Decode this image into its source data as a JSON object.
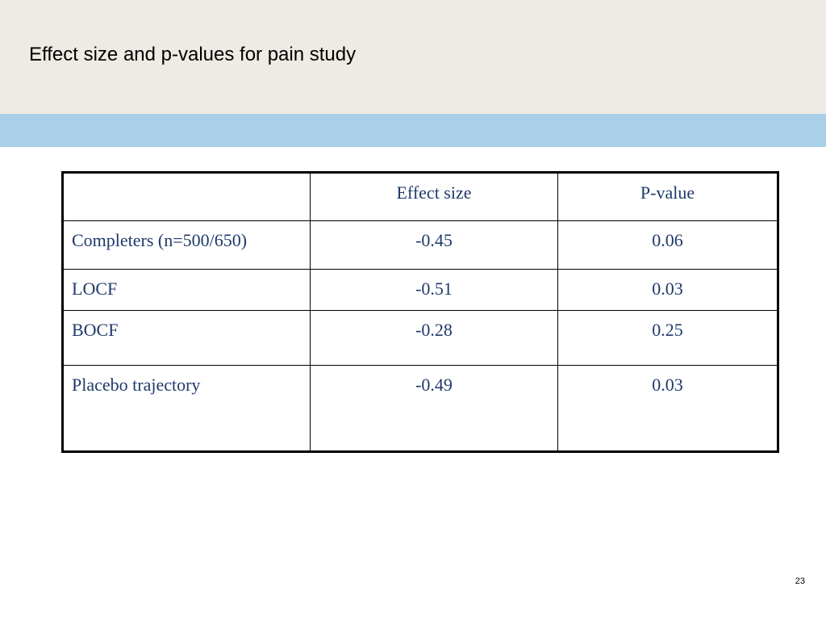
{
  "slide": {
    "title": "Effect size and p-values for pain study",
    "page_number": "23"
  },
  "colors": {
    "header_band": "#eeebe4",
    "accent_bar": "#aacfe8",
    "table_text": "#1f3a6b"
  },
  "table": {
    "headers": [
      "",
      "Effect size",
      "P-value"
    ],
    "rows": [
      {
        "label": "Completers (n=500/650)",
        "effect_size": "-0.45",
        "p_value": "0.06"
      },
      {
        "label": "LOCF",
        "effect_size": "-0.51",
        "p_value": "0.03"
      },
      {
        "label": "BOCF",
        "effect_size": "-0.28",
        "p_value": "0.25"
      },
      {
        "label": "Placebo trajectory",
        "effect_size": "-0.49",
        "p_value": "0.03"
      }
    ]
  }
}
